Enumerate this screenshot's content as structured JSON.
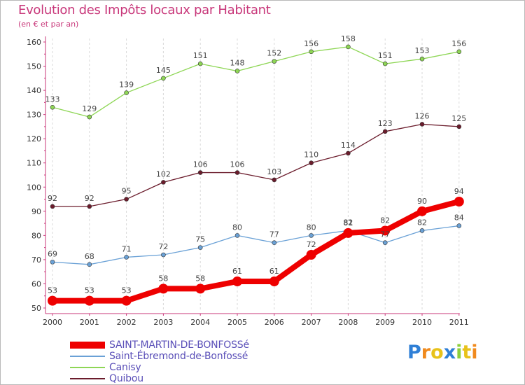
{
  "header": {
    "title": "Evolution des Impôts locaux par Habitant",
    "subtitle": "(en € et par an)"
  },
  "colors": {
    "title": "#c8377a",
    "axis": "#c8377a",
    "grid": "#d9d9d9",
    "legend_text": "#5a4fb8"
  },
  "chart_data": {
    "type": "line",
    "title": "Evolution des Impôts locaux par Habitant",
    "subtitle": "(en € et par an)",
    "xlabel": "",
    "ylabel": "",
    "ylim": [
      50,
      160
    ],
    "yticks": [
      50,
      60,
      70,
      80,
      90,
      100,
      110,
      120,
      130,
      140,
      150,
      160
    ],
    "grid": "vertical dashed",
    "legend_placement": "bottom-left",
    "categories": [
      "2000",
      "2001",
      "2002",
      "2003",
      "2004",
      "2005",
      "2006",
      "2007",
      "2008",
      "2009",
      "2010",
      "2011"
    ],
    "series": [
      {
        "name": "SAINT-MARTIN-DE-BONFOSSé",
        "color": "#ee0000",
        "emphasis": true,
        "values": [
          53,
          53,
          53,
          58,
          58,
          61,
          61,
          72,
          81,
          82,
          90,
          94
        ]
      },
      {
        "name": "Saint-Ébremond-de-Bonfossé",
        "color": "#6aa1d6",
        "values": [
          69,
          68,
          71,
          72,
          75,
          80,
          77,
          80,
          82,
          77,
          82,
          84
        ]
      },
      {
        "name": "Canisy",
        "color": "#8ed655",
        "values": [
          133,
          129,
          139,
          145,
          151,
          148,
          152,
          156,
          158,
          151,
          153,
          156
        ]
      },
      {
        "name": "Quibou",
        "color": "#6b1c2c",
        "values": [
          92,
          92,
          95,
          102,
          106,
          106,
          103,
          110,
          114,
          123,
          126,
          125
        ]
      }
    ]
  },
  "logo": {
    "letters": [
      "P",
      "r",
      "o",
      "x",
      "i",
      "t",
      "i"
    ],
    "colors": [
      "#2f7fd6",
      "#f08a1d",
      "#e8c21a",
      "#2f7fd6",
      "#8ccf3b",
      "#e8c21a",
      "#f08a1d"
    ]
  }
}
